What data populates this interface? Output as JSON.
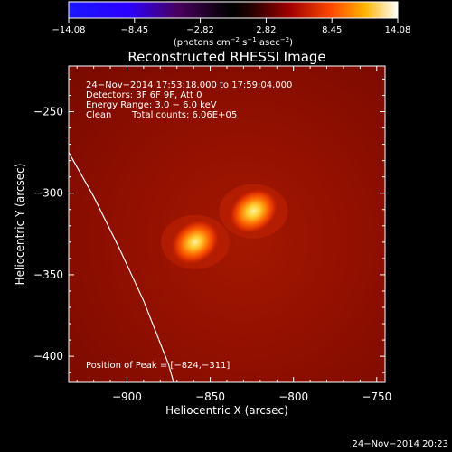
{
  "chart_data": {
    "type": "heatmap",
    "title": "Reconstructed RHESSI Image",
    "xlabel": "Heliocentric X (arcsec)",
    "ylabel": "Heliocentric Y (arcsec)",
    "xlim": [
      -935,
      -745
    ],
    "ylim": [
      -416,
      -222
    ],
    "x_ticks": [
      -900,
      -850,
      -800,
      -750
    ],
    "x_tick_labels": [
      "−900",
      "−850",
      "−800",
      "−750"
    ],
    "y_ticks": [
      -250,
      -300,
      -350,
      -400
    ],
    "y_tick_labels": [
      "−250",
      "−300",
      "−350",
      "−400"
    ],
    "colorbar": {
      "range": [
        -14.08,
        14.08
      ],
      "tick_labels": [
        "−14.08",
        "−8.45",
        "−2.82",
        "2.82",
        "8.45",
        "14.08"
      ],
      "unit_text": "(photons cm",
      "unit_exp1": "−2",
      "unit_mid": " s",
      "unit_exp2": "−1",
      "unit_mid2": " asec",
      "unit_exp3": "−2",
      "unit_end": ")"
    },
    "sources": [
      {
        "x": -824,
        "y": -311,
        "peak": 1.0
      },
      {
        "x": -859,
        "y": -330,
        "peak": 0.95
      }
    ],
    "limb_curve": [
      [
        -935,
        -275
      ],
      [
        -920,
        -302
      ],
      [
        -905,
        -333
      ],
      [
        -890,
        -366
      ],
      [
        -875,
        -405
      ],
      [
        -872,
        -416
      ]
    ],
    "annotations": {
      "line1": "24−Nov−2014 17:53:18.000 to 17:59:04.000",
      "line2": "Detectors: 3F 6F 9F, Att 0",
      "line3": "Energy Range: 3.0 − 6.0 keV",
      "line4_a": "Clean",
      "line4_b": "Total counts: 6.06E+05",
      "peak": "Position of Peak = [−824,−311]",
      "footer": "24−Nov−2014 20:23"
    }
  }
}
